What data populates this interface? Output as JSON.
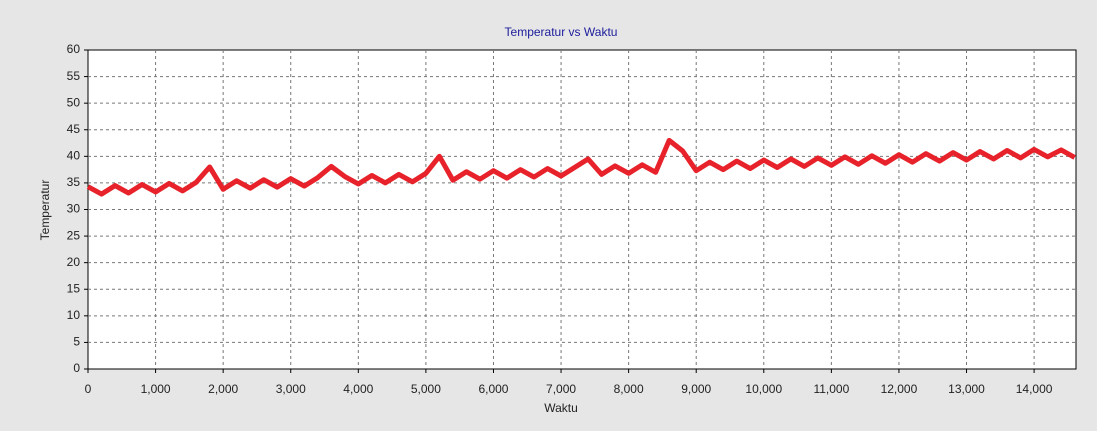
{
  "chart_data": {
    "type": "line",
    "title": "Temperatur vs Waktu",
    "x_label": "Waktu",
    "y_label": "Temperatur",
    "x": [
      0,
      200,
      400,
      600,
      800,
      1000,
      1200,
      1400,
      1600,
      1800,
      2000,
      2200,
      2400,
      2600,
      2800,
      3000,
      3200,
      3400,
      3600,
      3800,
      4000,
      4200,
      4400,
      4600,
      4800,
      5000,
      5200,
      5400,
      5600,
      5800,
      6000,
      6200,
      6400,
      6600,
      6800,
      7000,
      7200,
      7400,
      7600,
      7800,
      8000,
      8200,
      8400,
      8600,
      8800,
      9000,
      9200,
      9400,
      9600,
      9800,
      10000,
      10200,
      10400,
      10600,
      10800,
      11000,
      11200,
      11400,
      11600,
      11800,
      12000,
      12200,
      12400,
      12600,
      12800,
      13000,
      13200,
      13400,
      13600,
      13800,
      14000,
      14200,
      14400,
      14600
    ],
    "series": [
      {
        "color": "#e8222a",
        "values": [
          34.3,
          32.9,
          34.5,
          33.1,
          34.7,
          33.3,
          34.9,
          33.5,
          35.1,
          38.0,
          33.8,
          35.4,
          34.0,
          35.6,
          34.2,
          35.8,
          34.4,
          36.0,
          38.1,
          36.2,
          34.8,
          36.4,
          35.0,
          36.6,
          35.2,
          36.8,
          40.0,
          35.5,
          37.1,
          35.7,
          37.3,
          35.9,
          37.5,
          36.1,
          37.7,
          36.3,
          37.9,
          39.5,
          36.6,
          38.2,
          36.8,
          38.4,
          37.0,
          43.0,
          41.0,
          37.3,
          38.9,
          37.5,
          39.1,
          37.7,
          39.3,
          37.9,
          39.5,
          38.1,
          39.7,
          38.3,
          39.9,
          38.5,
          40.1,
          38.7,
          40.3,
          38.9,
          40.5,
          39.1,
          40.7,
          39.3,
          40.9,
          39.5,
          41.1,
          39.7,
          41.3,
          39.9,
          41.2,
          39.8
        ]
      }
    ],
    "xlim": [
      0,
      14620
    ],
    "ylim": [
      0,
      60
    ],
    "xticks": [
      0,
      {
        "value": 1000,
        "label": "1,000"
      },
      {
        "value": 2000,
        "label": "2,000"
      },
      {
        "value": 3000,
        "label": "3,000"
      },
      {
        "value": 4000,
        "label": "4,000"
      },
      {
        "value": 5000,
        "label": "5,000"
      },
      {
        "value": 6000,
        "label": "6,000"
      },
      {
        "value": 7000,
        "label": "7,000"
      },
      {
        "value": 8000,
        "label": "8,000"
      },
      {
        "value": 9000,
        "label": "9,000"
      },
      {
        "value": 10000,
        "label": "10,000"
      },
      {
        "value": 11000,
        "label": "11,000"
      },
      {
        "value": 12000,
        "label": "12,000"
      },
      {
        "value": 13000,
        "label": "13,000"
      },
      {
        "value": 14000,
        "label": "14,000"
      }
    ],
    "yticks": [
      0,
      5,
      10,
      15,
      20,
      25,
      30,
      35,
      40,
      45,
      50,
      55,
      60
    ],
    "grid": true
  }
}
